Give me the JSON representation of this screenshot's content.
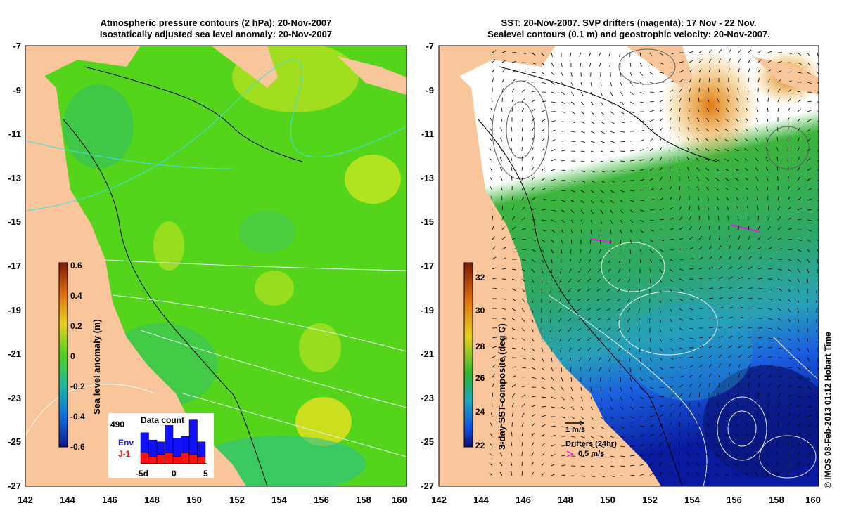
{
  "left_panel": {
    "title_line1": "Atmospheric pressure contours (2 hPa): 20-Nov-2007",
    "title_line2": "Isostatically adjusted sea level anomaly: 20-Nov-2007",
    "colorbar": {
      "label": "Sea level anomaly (m)",
      "ticks": [
        "0.6",
        "0.4",
        "0.2",
        "0",
        "-0.2",
        "-0.4",
        "-0.6"
      ]
    },
    "data_count": {
      "title": "Data count",
      "max_label": "490",
      "env_label": "Env",
      "j1_label": "J-1",
      "x_ticks": [
        "-5d",
        "0",
        "5"
      ],
      "env_values": [
        0.55,
        0.45,
        0.35,
        0.75,
        0.5,
        0.45,
        0.95,
        0.4
      ],
      "j1_values": [
        0.3,
        0.2,
        0.25,
        0.3,
        0.2,
        0.3,
        0.25,
        0.2
      ]
    }
  },
  "right_panel": {
    "title_line1": "SST: 20-Nov-2007. SVP drifters (magenta): 17 Nov - 22 Nov.",
    "title_line2": "Sealevel contours (0.1 m) and geostrophic velocity: 20-Nov-2007.",
    "colorbar": {
      "label": "3-day SST composite (deg C)",
      "ticks": [
        "32",
        "30",
        "28",
        "26",
        "24",
        "22"
      ]
    },
    "velocity_legend": "1 m/s",
    "drifter_legend_title": "Drifters (24hr)",
    "drifter_legend_value": "0.5 m/s"
  },
  "axes": {
    "y_ticks": [
      "-7",
      "-9",
      "-11",
      "-13",
      "-15",
      "-17",
      "-19",
      "-21",
      "-23",
      "-25",
      "-27"
    ],
    "x_ticks": [
      "142",
      "144",
      "146",
      "148",
      "150",
      "152",
      "154",
      "156",
      "158",
      "160"
    ]
  },
  "colors": {
    "land": "#f9c59a",
    "sla_base": "#55d41c",
    "sst_warm": "#3fb830",
    "sst_cool": "#2050d8",
    "drifters": "#e020e0"
  },
  "credit": "© IMOS 08-Feb-2013 01:12 Hobart Time"
}
